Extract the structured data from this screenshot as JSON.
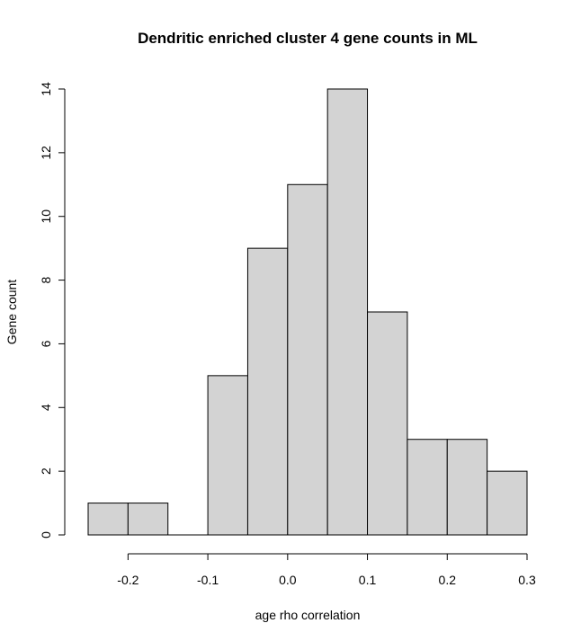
{
  "chart_data": {
    "type": "bar",
    "title": "Dendritic enriched cluster 4 gene counts in ML",
    "xlabel": "age rho correlation",
    "ylabel": "Gene count",
    "bins": [
      {
        "x0": -0.25,
        "x1": -0.2,
        "count": 1
      },
      {
        "x0": -0.2,
        "x1": -0.15,
        "count": 1
      },
      {
        "x0": -0.15,
        "x1": -0.1,
        "count": 0
      },
      {
        "x0": -0.1,
        "x1": -0.05,
        "count": 5
      },
      {
        "x0": -0.05,
        "x1": 0.0,
        "count": 9
      },
      {
        "x0": 0.0,
        "x1": 0.05,
        "count": 11
      },
      {
        "x0": 0.05,
        "x1": 0.1,
        "count": 14
      },
      {
        "x0": 0.1,
        "x1": 0.15,
        "count": 7
      },
      {
        "x0": 0.15,
        "x1": 0.2,
        "count": 3
      },
      {
        "x0": 0.2,
        "x1": 0.25,
        "count": 3
      },
      {
        "x0": 0.25,
        "x1": 0.3,
        "count": 2
      }
    ],
    "xlim": [
      -0.25,
      0.3
    ],
    "ylim": [
      0,
      14
    ],
    "x_ticks": [
      -0.2,
      -0.1,
      0.0,
      0.1,
      0.2,
      0.3
    ],
    "x_tick_labels": [
      "-0.2",
      "-0.1",
      "0.0",
      "0.1",
      "0.2",
      "0.3"
    ],
    "y_ticks": [
      0,
      2,
      4,
      6,
      8,
      10,
      12,
      14
    ],
    "y_tick_labels": [
      "0",
      "2",
      "4",
      "6",
      "8",
      "10",
      "12",
      "14"
    ],
    "bar_color": "#d3d3d3",
    "grid": false
  }
}
